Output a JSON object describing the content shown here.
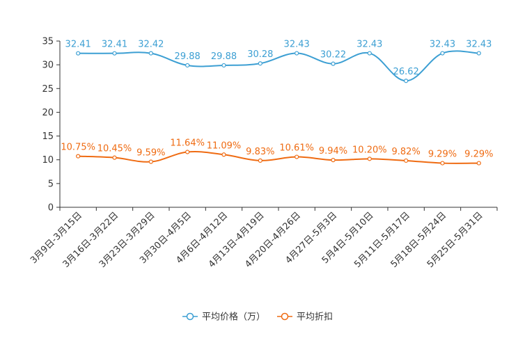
{
  "chart_data": {
    "type": "line",
    "title": "",
    "xlabel": "",
    "ylabel": "",
    "ylim": [
      0,
      35
    ],
    "yticks": [
      0,
      5,
      10,
      15,
      20,
      25,
      30,
      35
    ],
    "grid": false,
    "legend_position": "bottom-center",
    "categories": [
      "3月9日-3月15日",
      "3月16日-3月22日",
      "3月23日-3月29日",
      "3月30日-4月5日",
      "4月6日-4月12日",
      "4月13日-4月19日",
      "4月20日-4月26日",
      "4月27日-5月3日",
      "5月4日-5月10日",
      "5月11日-5月17日",
      "5月18日-5月24日",
      "5月25日-5月31日"
    ],
    "series": [
      {
        "name": "平均价格（万）",
        "color": "#3c9fd3",
        "values": [
          32.41,
          32.41,
          32.42,
          29.88,
          29.88,
          30.28,
          32.43,
          30.22,
          32.43,
          26.62,
          32.43,
          32.43
        ],
        "labels": [
          "32.41",
          "32.41",
          "32.42",
          "29.88",
          "29.88",
          "30.28",
          "32.43",
          "30.22",
          "32.43",
          "26.62",
          "32.43",
          "32.43"
        ]
      },
      {
        "name": "平均折扣",
        "color": "#ef6b12",
        "values": [
          10.75,
          10.45,
          9.59,
          11.64,
          11.09,
          9.83,
          10.61,
          9.94,
          10.2,
          9.82,
          9.29,
          9.29
        ],
        "labels": [
          "10.75%",
          "10.45%",
          "9.59%",
          "11.64%",
          "11.09%",
          "9.83%",
          "10.61%",
          "9.94%",
          "10.20%",
          "9.82%",
          "9.29%",
          "9.29%"
        ]
      }
    ]
  }
}
